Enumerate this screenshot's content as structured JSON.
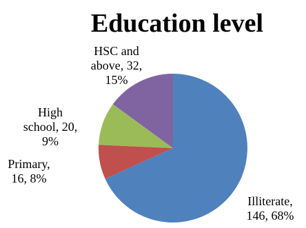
{
  "chart_data": {
    "type": "pie",
    "title": "Education level",
    "slices": [
      {
        "name": "Illiterate",
        "value": 146,
        "percent": "68%",
        "color": "#4F81BD",
        "label_lines": [
          "Illiterate,",
          "146, 68%"
        ]
      },
      {
        "name": "Primary",
        "value": 16,
        "percent": "8%",
        "color": "#C0504D",
        "label_lines": [
          "Primary,",
          "16, 8%"
        ]
      },
      {
        "name": "High school",
        "value": 20,
        "percent": "9%",
        "color": "#9BBB59",
        "label_lines": [
          "High",
          "school, 20,",
          "9%"
        ]
      },
      {
        "name": "HSC and above",
        "value": 32,
        "percent": "15%",
        "color": "#8064A2",
        "label_lines": [
          "HSC and",
          "above, 32,",
          "15%"
        ]
      }
    ],
    "legend": "none"
  }
}
